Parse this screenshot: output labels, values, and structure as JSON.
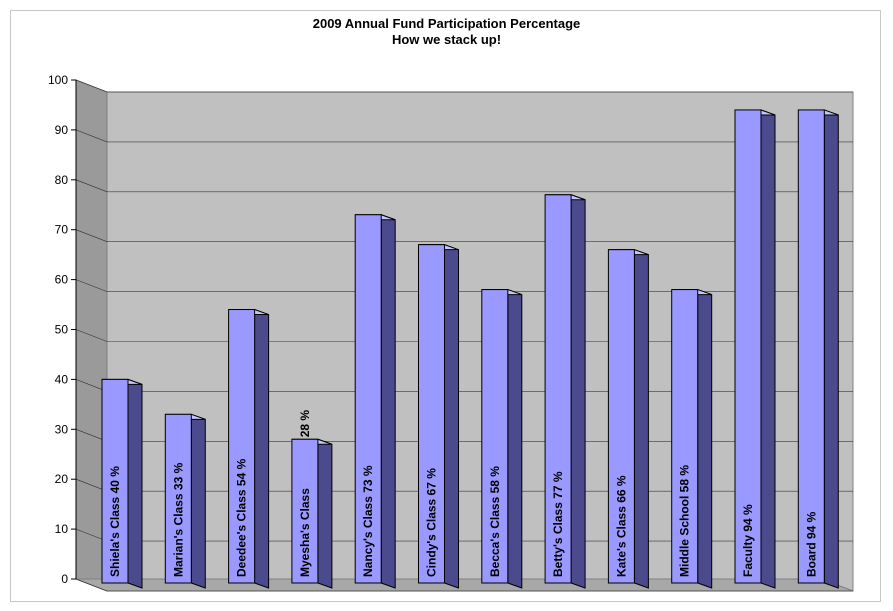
{
  "colors": {
    "bar_front": "#9999ff",
    "bar_side": "#4a4a8c",
    "bar_top": "#c4c4ff",
    "wall": "#c0c0c0",
    "floor": "#a8a8a8",
    "side_wall": "#9a9a9a",
    "gridline": "#000000",
    "bar_outline": "#000000"
  },
  "chart_data": {
    "type": "bar",
    "title": "2009 Annual Fund Participation Percentage",
    "subtitle": "How we stack up!",
    "xlabel": "",
    "ylabel": "",
    "ylim": [
      0,
      100
    ],
    "yticks": [
      0,
      10,
      20,
      30,
      40,
      50,
      60,
      70,
      80,
      90,
      100
    ],
    "grid": true,
    "legend": "none",
    "three_d": true,
    "categories": [
      "Shiela's Class",
      "Marian's Class",
      "Deedee's Class",
      "Myesha's Class",
      "Nancy's Class",
      "Cindy's Class",
      "Becca's Class",
      "Betty's Class",
      "Kate's Class",
      "Middle School",
      "Faculty",
      "Board"
    ],
    "values": [
      40,
      33,
      54,
      28,
      73,
      67,
      58,
      77,
      66,
      58,
      94,
      94
    ],
    "data_labels": [
      "Shiela's Class  40 %",
      "Marian's Class  33 %",
      "Deedee's Class  54 %",
      "Myesha's Class",
      "Nancy's Class  73 %",
      "Cindy's Class  67 %",
      "Becca's Class  58 %",
      "Betty's Class  77 %",
      "Kate's Class  66 %",
      "Middle School  58 %",
      "Faculty  94 %",
      "Board  94 %"
    ],
    "data_labels_outside": [
      "",
      "",
      "",
      "28 %",
      "",
      "",
      "",
      "",
      "",
      "",
      "",
      ""
    ]
  }
}
